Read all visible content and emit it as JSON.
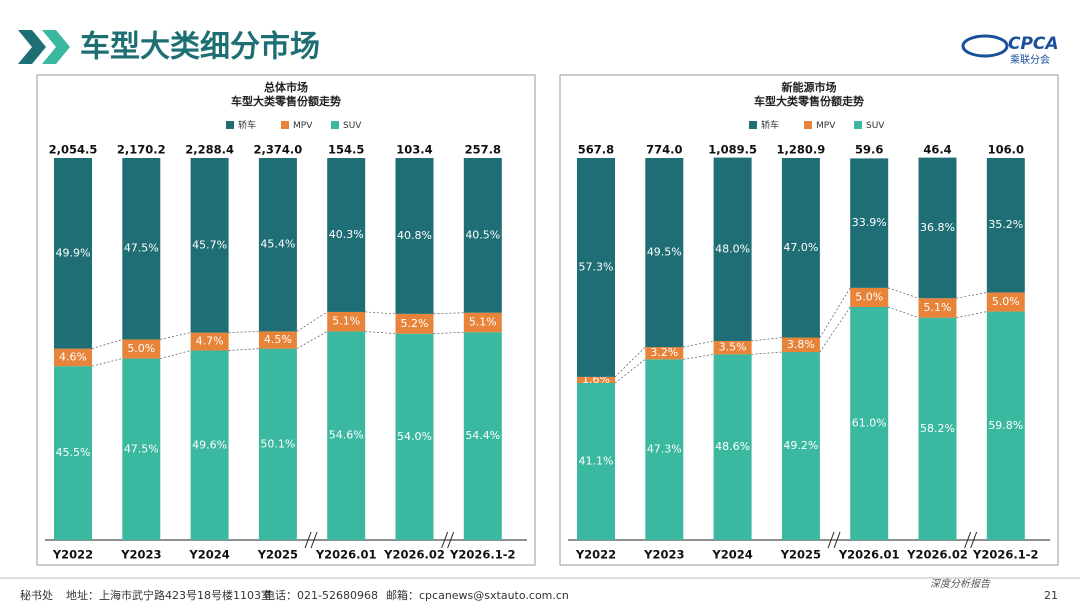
{
  "header": {
    "title": "车型大类细分市场",
    "logo": "CPCA",
    "logo_sub": "乘联分会"
  },
  "footer": {
    "org": "秘书处",
    "address": "地址：上海市武宁路423号18号楼1103室",
    "phone": "电话：021-52680968",
    "email": "邮箱：cpcanews@sxtauto.com.cn",
    "tag": "深度分析报告",
    "page": "21"
  },
  "chart_data": [
    {
      "type": "stacked_bar",
      "title": "总体市场",
      "subtitle": "车型大类零售份额走势",
      "ylim": [
        0,
        100
      ],
      "categories": [
        "Y2022",
        "Y2023",
        "Y2024",
        "Y2025",
        "Y2026.01",
        "Y2026.02",
        "Y2026.1-2"
      ],
      "series": [
        {
          "name": "轿车",
          "color": "#1f6e75",
          "values": [
            49.9,
            47.5,
            45.7,
            45.4,
            40.3,
            40.8,
            40.5
          ],
          "value_labels": [
            "49.9%",
            "47.5%",
            "45.7%",
            "45.4%",
            "40.3%",
            "40.8%",
            "40.5%"
          ]
        },
        {
          "name": "MPV",
          "color": "#e8833a",
          "values": [
            4.6,
            5.0,
            4.7,
            4.5,
            5.1,
            5.2,
            5.1
          ],
          "value_labels": [
            "4.6%",
            "5.0%",
            "4.7%",
            "4.5%",
            "5.1%",
            "5.2%",
            "5.1%"
          ]
        },
        {
          "name": "SUV",
          "color": "#3bb8a0",
          "values": [
            45.5,
            47.5,
            49.6,
            50.1,
            54.6,
            54.0,
            54.4
          ],
          "value_labels": [
            "45.5%",
            "47.5%",
            "49.6%",
            "50.1%",
            "54.6%",
            "54.0%",
            "54.4%"
          ]
        }
      ],
      "totals": {
        "values": [
          2054.5,
          2170.2,
          2288.4,
          2374.0,
          154.5,
          103.4,
          257.8
        ],
        "value_labels": [
          "2,054.5",
          "2,170.2",
          "2,288.4",
          "2,374.0",
          "154.5",
          "103.4",
          "257.8"
        ]
      }
    },
    {
      "type": "stacked_bar",
      "title": "新能源市场",
      "subtitle": "车型大类零售份额走势",
      "ylim": [
        0,
        100
      ],
      "categories": [
        "Y2022",
        "Y2023",
        "Y2024",
        "Y2025",
        "Y2026.01",
        "Y2026.02",
        "Y2026.1-2"
      ],
      "series": [
        {
          "name": "轿车",
          "color": "#1f6e75",
          "values": [
            57.3,
            49.5,
            48.0,
            47.0,
            33.9,
            36.8,
            35.2
          ],
          "value_labels": [
            "57.3%",
            "49.5%",
            "48.0%",
            "47.0%",
            "33.9%",
            "36.8%",
            "35.2%"
          ]
        },
        {
          "name": "MPV",
          "color": "#e8833a",
          "values": [
            1.6,
            3.2,
            3.5,
            3.8,
            5.0,
            5.1,
            5.0
          ],
          "value_labels": [
            "1.6%",
            "3.2%",
            "3.5%",
            "3.8%",
            "5.0%",
            "5.1%",
            "5.0%"
          ]
        },
        {
          "name": "SUV",
          "color": "#3bb8a0",
          "values": [
            41.1,
            47.3,
            48.6,
            49.2,
            61.0,
            58.2,
            59.8
          ],
          "value_labels": [
            "41.1%",
            "47.3%",
            "48.6%",
            "49.2%",
            "61.0%",
            "58.2%",
            "59.8%"
          ]
        }
      ],
      "totals": {
        "values": [
          567.8,
          774.0,
          1089.5,
          1280.9,
          59.6,
          46.4,
          106.0
        ],
        "value_labels": [
          "567.8",
          "774.0",
          "1,089.5",
          "1,280.9",
          "59.6",
          "46.4",
          "106.0"
        ]
      }
    }
  ]
}
